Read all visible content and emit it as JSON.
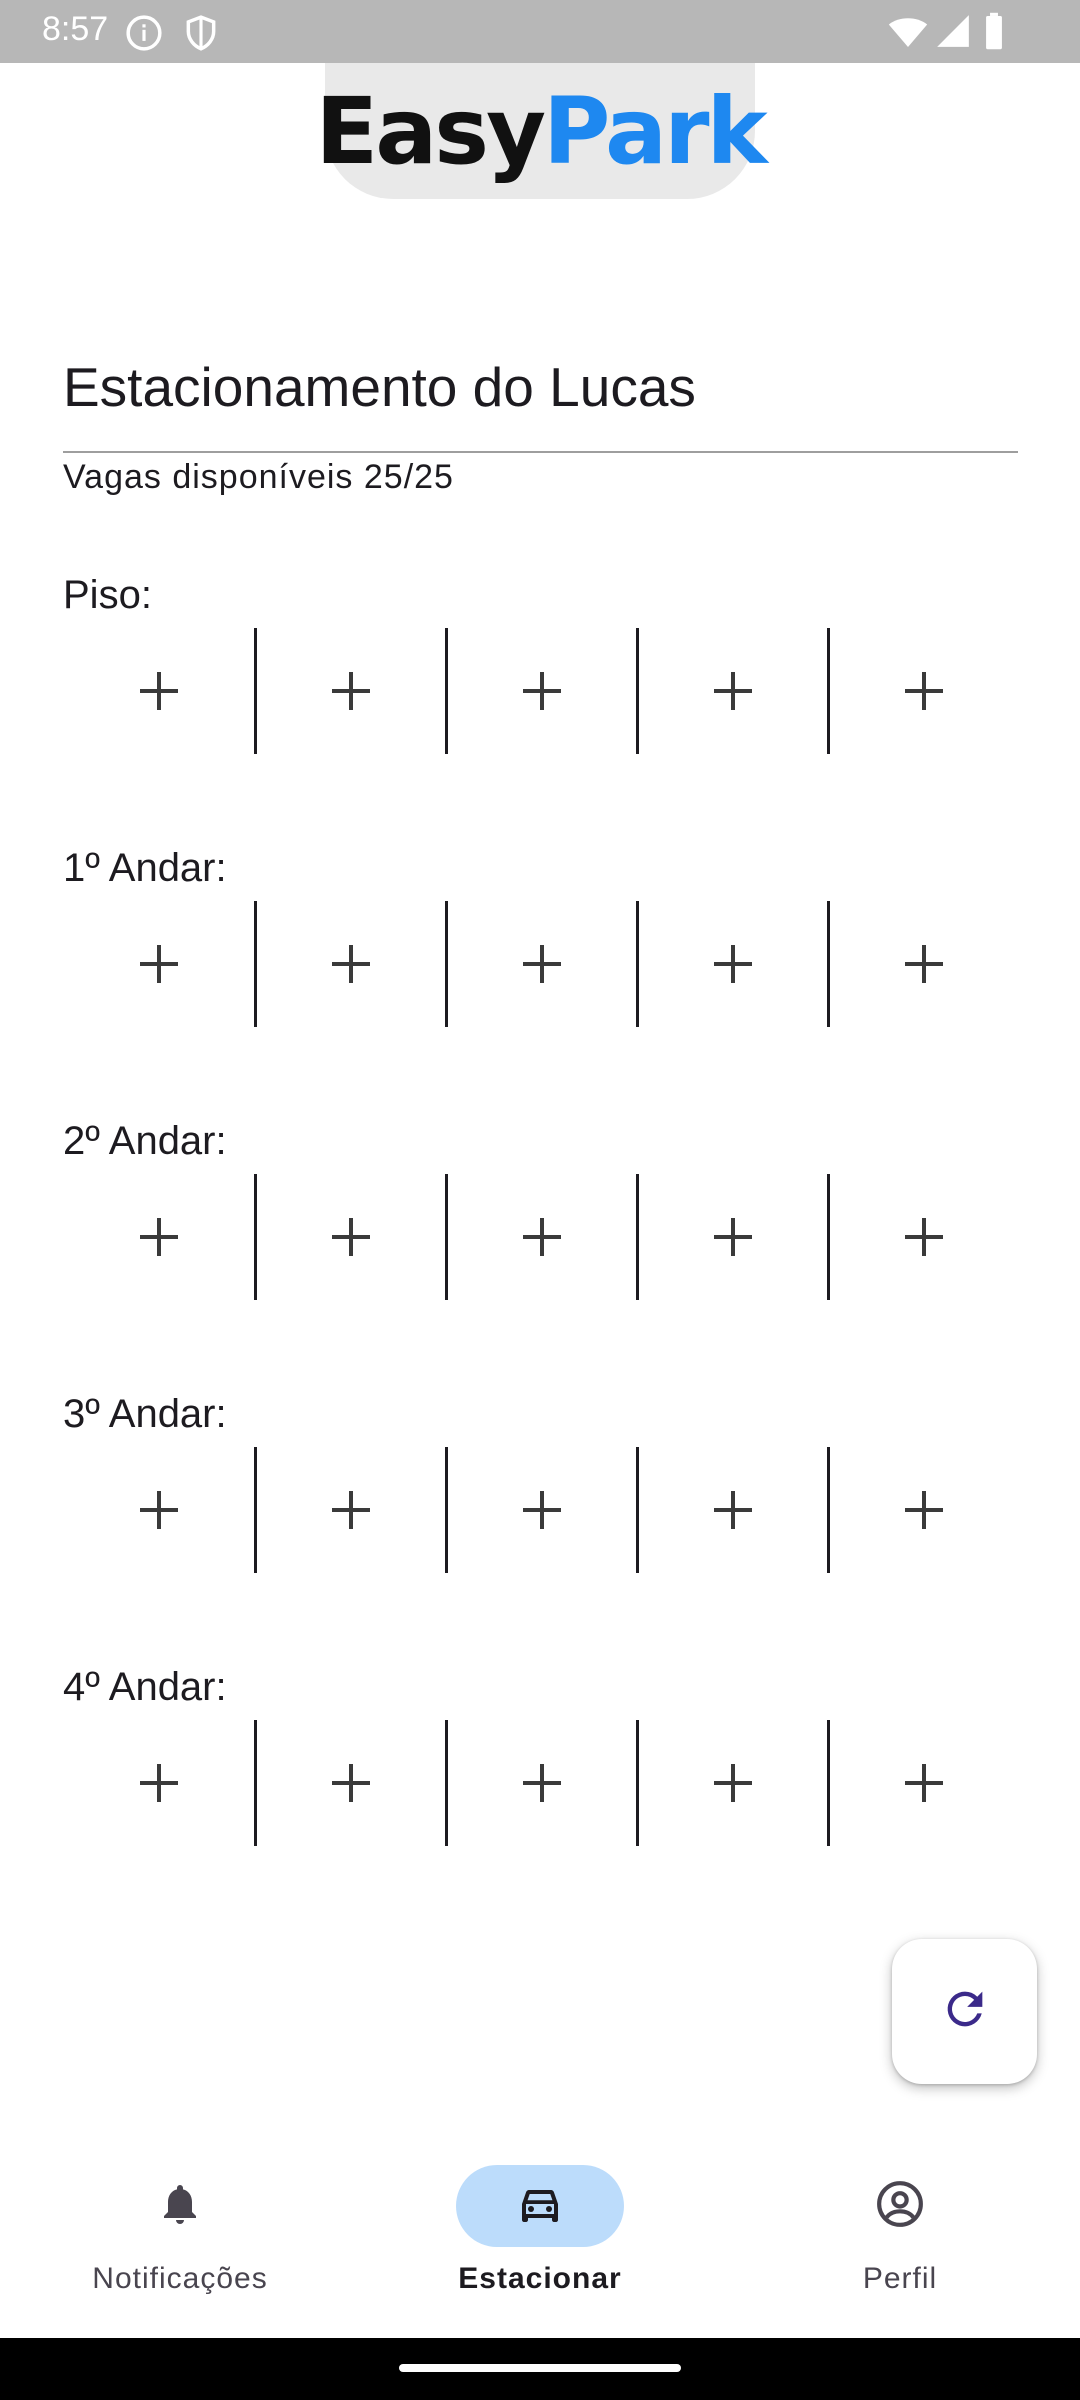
{
  "status_bar": {
    "time": "8:57",
    "left_icons": [
      "info-icon",
      "shield-icon"
    ],
    "right_icons": [
      "wifi-icon",
      "signal-icon",
      "battery-icon"
    ]
  },
  "logo": {
    "easy": "Easy",
    "park": "Park"
  },
  "parking": {
    "title": "Estacionamento do Lucas",
    "availability": "Vagas disponíveis 25/25"
  },
  "floors": [
    {
      "label": "Piso:",
      "slots": 5
    },
    {
      "label": "1º Andar:",
      "slots": 5
    },
    {
      "label": "2º Andar:",
      "slots": 5
    },
    {
      "label": "3º Andar:",
      "slots": 5
    },
    {
      "label": "4º Andar:",
      "slots": 5
    }
  ],
  "fab": {
    "icon": "refresh-icon"
  },
  "nav": {
    "items": [
      {
        "label": "Notificações",
        "icon": "bell-icon"
      },
      {
        "label": "Estacionar",
        "icon": "car-icon",
        "active": true
      },
      {
        "label": "Perfil",
        "icon": "account-circle-icon"
      }
    ]
  },
  "colors": {
    "brand_blue": "#1e88f0",
    "active_pill": "#bcdcfb",
    "status_bar": "#b7b7b7",
    "fab_icon": "#3b2a8a"
  }
}
